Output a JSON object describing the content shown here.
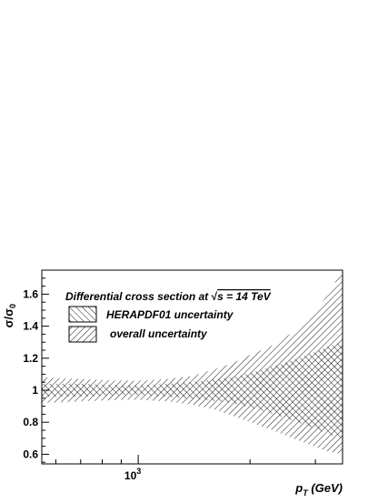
{
  "chart_data": {
    "type": "area",
    "title": "Differential cross section at √s = 14 TeV",
    "title_parts": {
      "prefix": "Differential cross section at ",
      "sqrt": "√",
      "s_eq": "s = 14 TeV"
    },
    "xlabel": {
      "main": "p",
      "sub": "T",
      "rest": " (GeV)"
    },
    "ylabel": {
      "main": "σ/σ",
      "sub": "0"
    },
    "x_scale": "log",
    "xlim": [
      550,
      3550
    ],
    "ylim": [
      0.54,
      1.75
    ],
    "x_ticks": [
      {
        "value": 1000,
        "base": "10",
        "exp": "3"
      }
    ],
    "y_ticks": [
      {
        "value": 0.6,
        "label": "0.6"
      },
      {
        "value": 0.8,
        "label": "0.8"
      },
      {
        "value": 1.0,
        "label": "1"
      },
      {
        "value": 1.2,
        "label": "1.2"
      },
      {
        "value": 1.4,
        "label": "1.4"
      },
      {
        "value": 1.6,
        "label": "1.6"
      }
    ],
    "grid": false,
    "legend_position": "top-left",
    "series": [
      {
        "name": "HERAPDF01 uncertainty",
        "hatch": "forward",
        "x": [
          550,
          700,
          900,
          1000,
          1200,
          1500,
          1800,
          2100,
          2400,
          2700,
          3000,
          3300,
          3550
        ],
        "lower": [
          0.96,
          0.96,
          0.97,
          0.97,
          0.96,
          0.94,
          0.92,
          0.88,
          0.84,
          0.8,
          0.76,
          0.72,
          0.7
        ],
        "upper": [
          1.04,
          1.04,
          1.03,
          1.03,
          1.04,
          1.06,
          1.08,
          1.12,
          1.16,
          1.2,
          1.24,
          1.28,
          1.3
        ]
      },
      {
        "name": "overall uncertainty",
        "hatch": "backward",
        "x": [
          550,
          700,
          900,
          1000,
          1200,
          1400,
          1600,
          1800,
          2000,
          2300,
          2600,
          2900,
          3200,
          3550
        ],
        "lower": [
          0.92,
          0.93,
          0.94,
          0.94,
          0.93,
          0.91,
          0.88,
          0.84,
          0.8,
          0.75,
          0.7,
          0.66,
          0.62,
          0.6
        ],
        "upper": [
          1.08,
          1.07,
          1.06,
          1.06,
          1.07,
          1.09,
          1.13,
          1.17,
          1.22,
          1.28,
          1.36,
          1.45,
          1.58,
          1.75
        ]
      }
    ],
    "colors": {
      "axis": "#000000",
      "hatch": "#000000",
      "background": "#ffffff"
    }
  }
}
